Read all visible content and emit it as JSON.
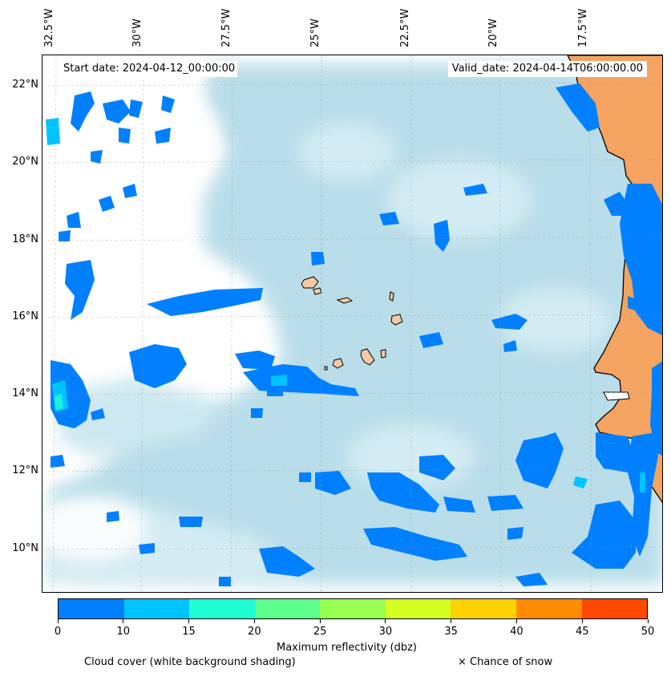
{
  "header": {
    "start_date": "Start date: 2024-04-12_00:00:00",
    "valid_date": "Valid_date: 2024-04-14T06:00:00.00"
  },
  "lon_ticks": [
    "32.5°W",
    "30°W",
    "27.5°W",
    "25°W",
    "22.5°W",
    "20°W",
    "17.5°W"
  ],
  "lat_ticks": [
    "22°N",
    "20°N",
    "18°N",
    "16°N",
    "14°N",
    "12°N",
    "10°N"
  ],
  "colorbar": {
    "label": "Maximum reflectivity (dbz)",
    "ticks": [
      "0",
      "10",
      "15",
      "20",
      "25",
      "30",
      "35",
      "40",
      "45",
      "50"
    ],
    "colors": [
      "#0080ff",
      "#00c4ff",
      "#1effd4",
      "#5cff8a",
      "#96ff50",
      "#d4ff20",
      "#ffd200",
      "#ff8c00",
      "#ff4800"
    ]
  },
  "legend": {
    "cloud_cover": "Cloud cover (white background shading)",
    "snow": "× Chance of snow"
  },
  "colors": {
    "land": "#f5a361",
    "cloud": "#add8e6",
    "ocean_clear": "#ffffff"
  }
}
